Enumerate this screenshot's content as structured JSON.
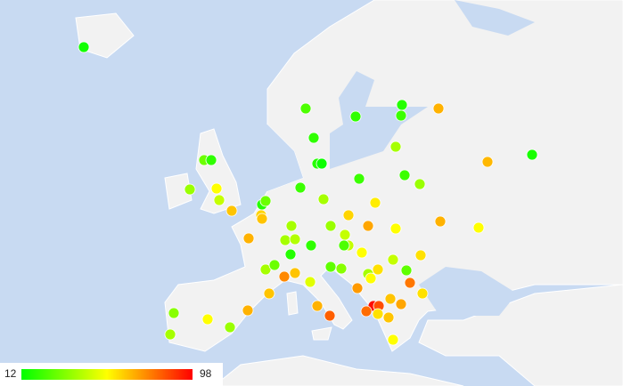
{
  "map": {
    "legend": {
      "min": 12,
      "max": 98,
      "colors": [
        "#00ff00",
        "#ffff00",
        "#ff0000"
      ]
    },
    "points": {
      "values": [
        15,
        25,
        20,
        18,
        22,
        68,
        20,
        40,
        18,
        14,
        67,
        16,
        30,
        20,
        38,
        55,
        45,
        65,
        18,
        30,
        62,
        65,
        22,
        40,
        22,
        22,
        38,
        58,
        62,
        40,
        38,
        70,
        55,
        68,
        55,
        68,
        40,
        42,
        20,
        45,
        45,
        25,
        55,
        18,
        60,
        45,
        40,
        30,
        28,
        35,
        40,
        60,
        28,
        75,
        65,
        50,
        55,
        72,
        78,
        65,
        60,
        65,
        70,
        96,
        85,
        80,
        60,
        65,
        68,
        82,
        68,
        35,
        55,
        38,
        40,
        55
      ]
    }
  }
}
